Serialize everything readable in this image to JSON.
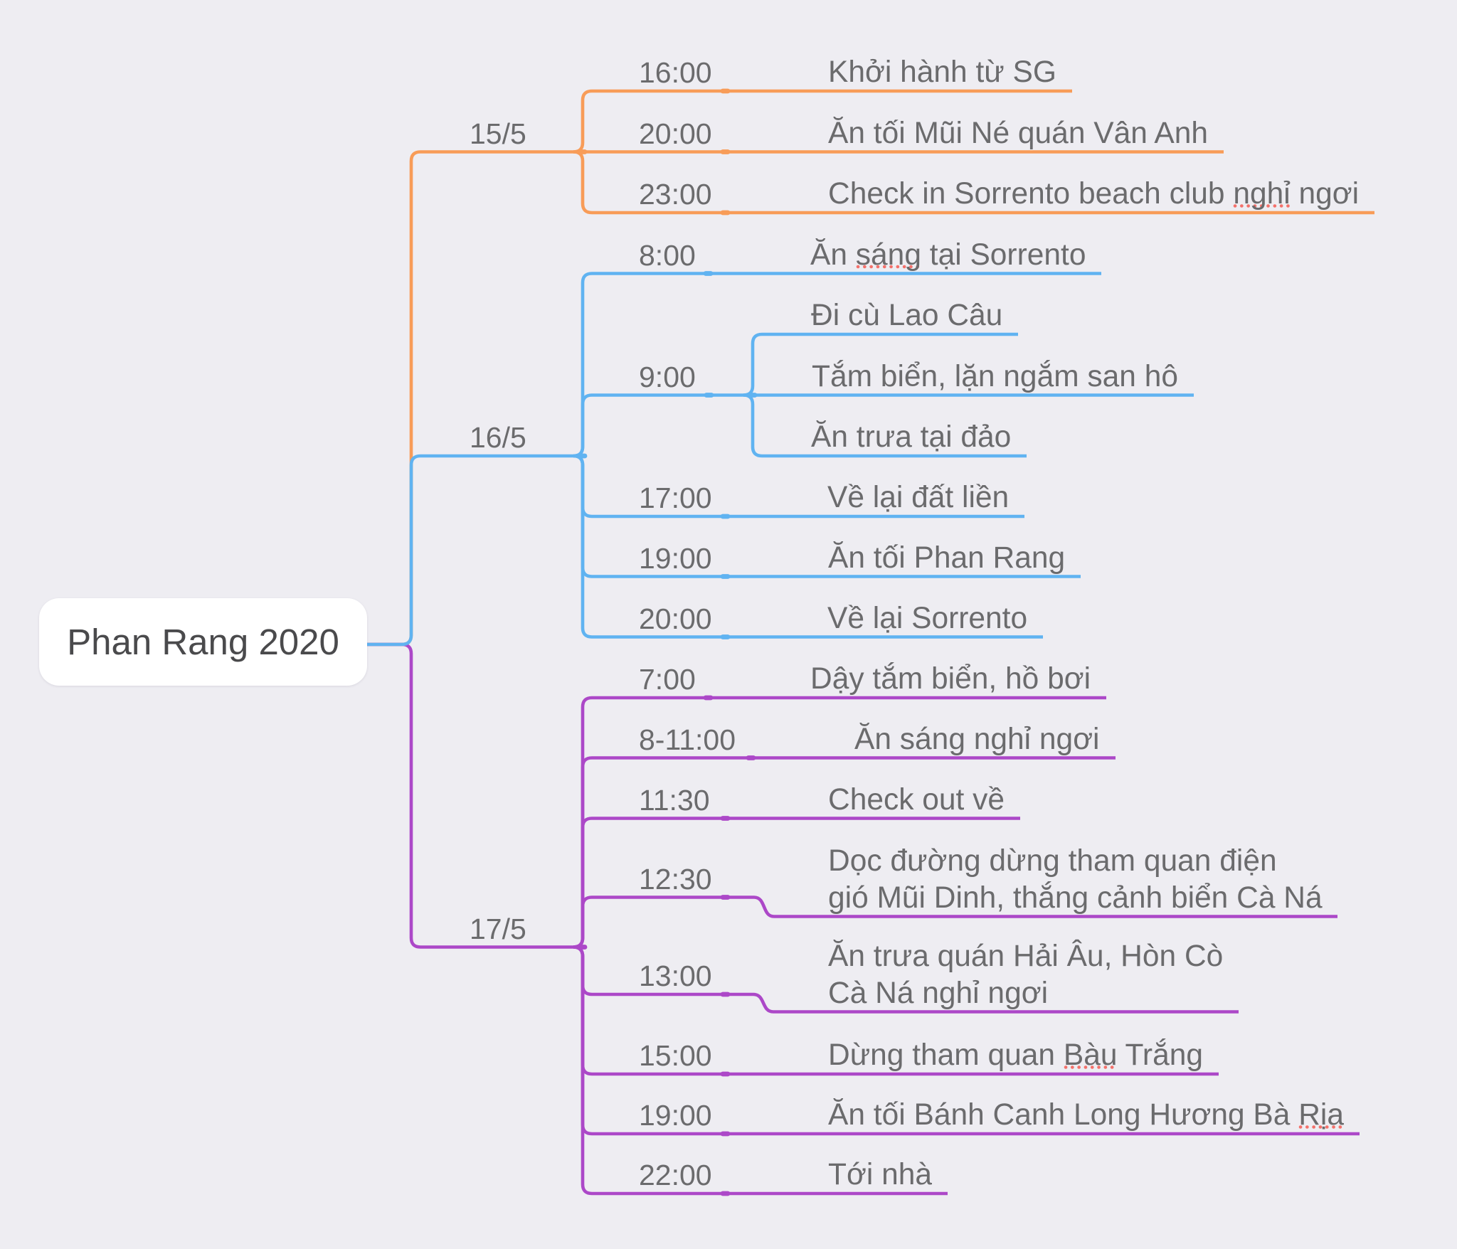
{
  "canvas": {
    "background": "#EEEDF2"
  },
  "root": {
    "label": "Phan Rang 2020"
  },
  "colors": {
    "branch_15_5": "#F89C58",
    "branch_16_5": "#60B3F1",
    "branch_17_5": "#AC48C8",
    "node_text": "#6B6B6D",
    "root_text": "#4A4A4C",
    "root_fill": "#FFFFFF",
    "spellcheck_dots": "#F4716B",
    "background": "#EEEDF2"
  },
  "branches": [
    {
      "label": "15/5",
      "color": "#F89C58",
      "items": [
        {
          "time": "16:00",
          "desc": "Khởi hành từ SG"
        },
        {
          "time": "20:00",
          "desc": "Ăn tối Mũi Né quán Vân Anh"
        },
        {
          "time": "23:00",
          "desc": "Check in Sorrento beach club nghỉ ngơi",
          "spellcheck": "nghỉ"
        }
      ]
    },
    {
      "label": "16/5",
      "color": "#60B3F1",
      "items": [
        {
          "time": "8:00",
          "desc": "Ăn sáng tại Sorrento",
          "spellcheck": "sáng"
        },
        {
          "time": "9:00",
          "children": [
            {
              "desc": "Đi cù Lao Câu"
            },
            {
              "desc": "Tắm biển, lặn ngắm san hô"
            },
            {
              "desc": "Ăn trưa tại đảo"
            }
          ]
        },
        {
          "time": "17:00",
          "desc": "Về lại đất liền"
        },
        {
          "time": "19:00",
          "desc": "Ăn tối Phan Rang"
        },
        {
          "time": "20:00",
          "desc": "Về lại Sorrento"
        }
      ]
    },
    {
      "label": "17/5",
      "color": "#AC48C8",
      "items": [
        {
          "time": "7:00",
          "desc": "Dậy tắm biển, hồ bơi"
        },
        {
          "time": "8-11:00",
          "desc": "Ăn sáng nghỉ ngơi"
        },
        {
          "time": "11:30",
          "desc": "Check out về"
        },
        {
          "time": "12:30",
          "desc_lines": [
            "Dọc đường dừng tham quan điện",
            "gió Mũi Dinh, thắng cảnh biển Cà Ná"
          ]
        },
        {
          "time": "13:00",
          "desc_lines": [
            "Ăn trưa quán Hải Âu, Hòn Cò",
            "Cà Ná nghỉ ngơi"
          ]
        },
        {
          "time": "15:00",
          "desc": "Dừng tham quan Bàu Trắng",
          "spellcheck": "Bàu"
        },
        {
          "time": "19:00",
          "desc": "Ăn tối Bánh Canh Long Hương Bà Rịa",
          "spellcheck": "Rịa"
        },
        {
          "time": "22:00",
          "desc": "Tới nhà"
        }
      ]
    }
  ]
}
